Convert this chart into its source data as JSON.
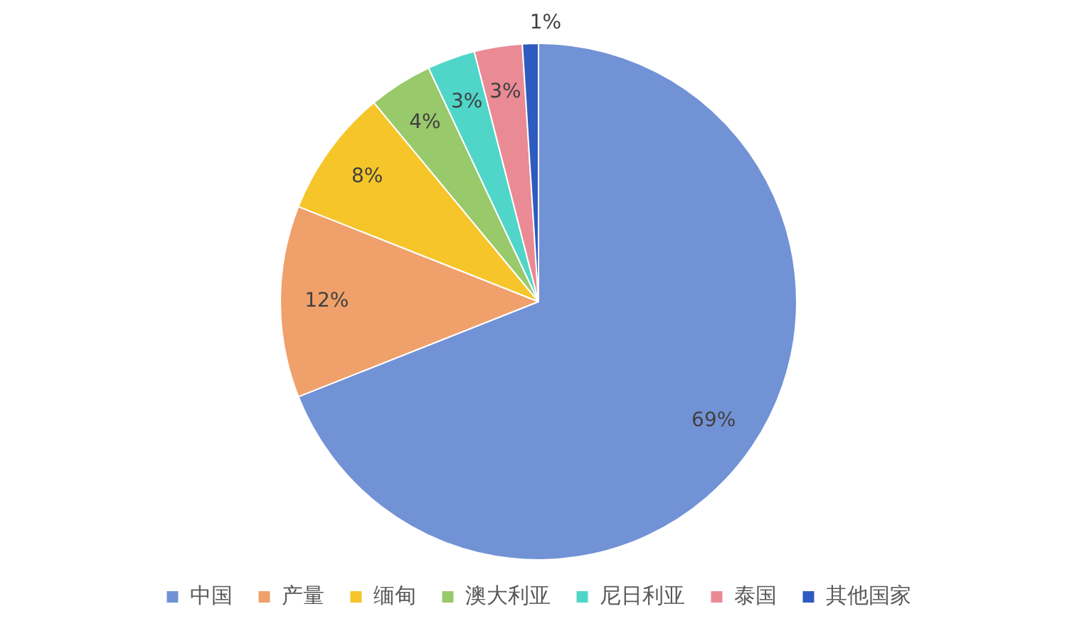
{
  "chart_data": {
    "type": "pie",
    "categories": [
      "中国",
      "产量",
      "缅甸",
      "澳大利亚",
      "尼日利亚",
      "泰国",
      "其他国家"
    ],
    "values": [
      69,
      12,
      8,
      4,
      3,
      3,
      1
    ],
    "colors": [
      "#7292d6",
      "#f0a06a",
      "#f5c52a",
      "#98c96a",
      "#4fd6c8",
      "#ea8a95",
      "#2e5bbf"
    ],
    "value_labels": [
      "69%",
      "12%",
      "8%",
      "4%",
      "3%",
      "3%",
      "1%"
    ],
    "legend": "bottom"
  }
}
